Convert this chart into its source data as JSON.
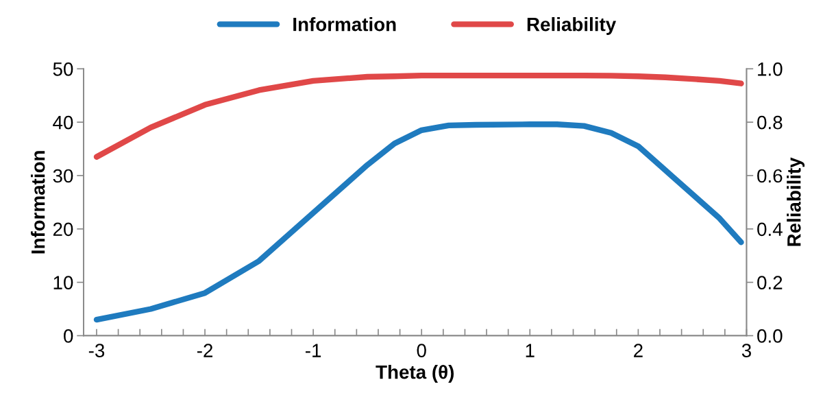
{
  "chart_data": {
    "type": "line",
    "xlabel": "Theta (θ)",
    "ylabel": "Information",
    "y2label": "Reliability",
    "xlim": [
      -3.12,
      3.0
    ],
    "xticks": [
      -3,
      {
        "value": -2.8,
        "label": null
      },
      {
        "value": -2.6,
        "label": null
      },
      {
        "value": -2.4,
        "label": null
      },
      {
        "value": -2.2,
        "label": null
      },
      -2,
      {
        "value": -1.8,
        "label": null
      },
      {
        "value": -1.6,
        "label": null
      },
      {
        "value": -1.4,
        "label": null
      },
      {
        "value": -1.2,
        "label": null
      },
      -1,
      {
        "value": -0.8,
        "label": null
      },
      {
        "value": -0.6,
        "label": null
      },
      {
        "value": -0.4,
        "label": null
      },
      {
        "value": -0.2,
        "label": null
      },
      0,
      {
        "value": 0.2,
        "label": null
      },
      {
        "value": 0.4,
        "label": null
      },
      {
        "value": 0.6,
        "label": null
      },
      {
        "value": 0.8,
        "label": null
      },
      1,
      {
        "value": 1.2,
        "label": null
      },
      {
        "value": 1.4,
        "label": null
      },
      {
        "value": 1.6,
        "label": null
      },
      {
        "value": 1.8,
        "label": null
      },
      2,
      {
        "value": 2.2,
        "label": null
      },
      {
        "value": 2.4,
        "label": null
      },
      {
        "value": 2.6,
        "label": null
      },
      {
        "value": 2.8,
        "label": null
      },
      3
    ],
    "ylim": [
      0,
      50
    ],
    "yticks": [
      0,
      10,
      20,
      30,
      40,
      50
    ],
    "y2lim": [
      0,
      1
    ],
    "y2ticks": [
      {
        "value": 0,
        "label": "0.0"
      },
      0.2,
      0.4,
      0.6,
      0.8,
      {
        "value": 1,
        "label": "1.0"
      }
    ],
    "grid": false,
    "legend": "top",
    "marker": "none",
    "line_style": "solid",
    "x": [
      -3,
      -2.5,
      -2,
      -1.5,
      -1,
      -0.5,
      -0.25,
      0,
      0.25,
      0.5,
      1,
      1.25,
      1.5,
      1.75,
      2,
      2.25,
      2.5,
      2.75,
      2.95
    ],
    "series": [
      {
        "name": "Information",
        "color": "#1f7bbf",
        "values": [
          3,
          5,
          8,
          14,
          23,
          32,
          36,
          38.5,
          39.4,
          39.5,
          39.6,
          39.6,
          39.3,
          38,
          35.5,
          31,
          26.5,
          22,
          17.5
        ]
      },
      {
        "name": "Reliability",
        "color": "#e04848",
        "axis": "y2",
        "values": [
          0.67,
          0.78,
          0.865,
          0.92,
          0.955,
          0.97,
          0.972,
          0.975,
          0.975,
          0.975,
          0.975,
          0.975,
          0.975,
          0.974,
          0.972,
          0.968,
          0.962,
          0.955,
          0.945
        ]
      }
    ]
  }
}
